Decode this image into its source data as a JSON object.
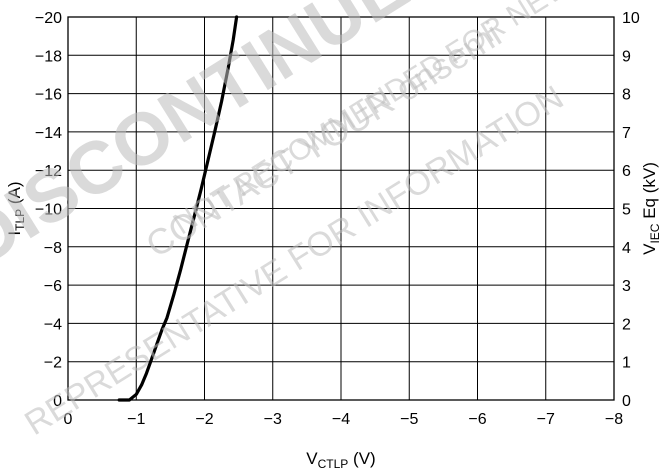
{
  "chart_data": {
    "type": "line",
    "xlabel": {
      "main": "V",
      "sub": "CTLP",
      "unit": " (V)"
    },
    "ylabel_left": {
      "main": "I",
      "sub": "TLP",
      "unit": " (A)"
    },
    "ylabel_right": {
      "main": "V",
      "sub": "IEC",
      "unit": " Eq (kV)"
    },
    "xlim": [
      0,
      -8
    ],
    "ylim_left": [
      0,
      -20
    ],
    "ylim_right": [
      0,
      10
    ],
    "x_ticks": [
      "0",
      "−1",
      "−2",
      "−3",
      "−4",
      "−5",
      "−6",
      "−7",
      "−8"
    ],
    "y_left_ticks": [
      "0",
      "−2",
      "−4",
      "−6",
      "−8",
      "−10",
      "−12",
      "−14",
      "−16",
      "−18",
      "−20"
    ],
    "y_right_ticks": [
      "0",
      "1",
      "2",
      "3",
      "4",
      "5",
      "6",
      "7",
      "8",
      "9",
      "10"
    ],
    "grid": true,
    "series": [
      {
        "x": [
          -0.75,
          -0.9,
          -1.0,
          -1.08,
          -1.15,
          -1.22,
          -1.3,
          -1.38,
          -1.45,
          -1.55,
          -1.65,
          -1.75,
          -1.85,
          -1.95,
          -2.05,
          -2.15,
          -2.25,
          -2.35,
          -2.42,
          -2.47
        ],
        "y": [
          0,
          0,
          -0.3,
          -0.8,
          -1.4,
          -2.1,
          -2.9,
          -3.7,
          -4.3,
          -5.5,
          -6.8,
          -8.2,
          -9.6,
          -11.0,
          -12.5,
          -14.0,
          -15.6,
          -17.4,
          -18.8,
          -20
        ],
        "color": "#000000"
      }
    ],
    "watermark": [
      "DISCONTINUED",
      "NOT RECOMMENDED FOR NEW DESIGN",
      "CONTACT YOUR onsemi",
      "REPRESENTATIVE FOR INFORMATION"
    ]
  }
}
